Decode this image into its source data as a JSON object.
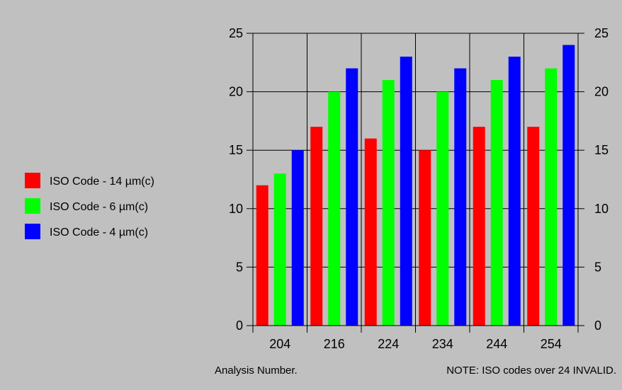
{
  "chart_data": {
    "type": "bar",
    "categories": [
      "204",
      "216",
      "224",
      "234",
      "244",
      "254"
    ],
    "series": [
      {
        "name": "ISO Code - 14 µm(c)",
        "color": "#ff0000",
        "values": [
          12,
          17,
          16,
          15,
          17,
          17
        ]
      },
      {
        "name": "ISO Code - 6 µm(c)",
        "color": "#00ff00",
        "values": [
          13,
          20,
          21,
          20,
          21,
          22
        ]
      },
      {
        "name": "ISO Code - 4 µm(c)",
        "color": "#0000ff",
        "values": [
          15,
          22,
          23,
          22,
          23,
          24
        ]
      }
    ],
    "ylim": [
      0,
      25
    ],
    "yticks": [
      "0",
      "5",
      "10",
      "15",
      "20",
      "25"
    ],
    "xlabel": "Analysis Number.",
    "ylabel": "",
    "grid": true,
    "legend": "left",
    "note": "NOTE: ISO codes over 24 INVALID.",
    "background": "#c0c0c0"
  }
}
